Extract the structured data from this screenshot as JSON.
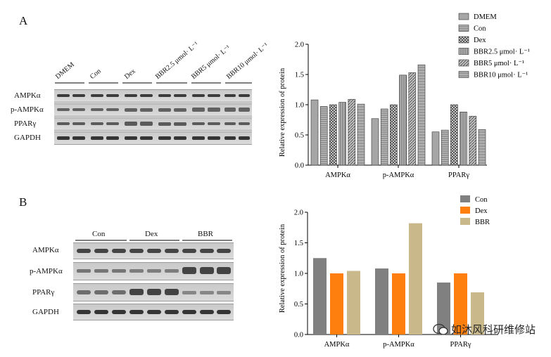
{
  "panelA": {
    "letter": "A",
    "blot_labels": [
      "AMPKα",
      "p-AMPKα",
      "PPARγ",
      "GAPDH"
    ],
    "blot_groups": [
      "DMEM",
      "Con",
      "Dex",
      "BBR2.5 μmol· L⁻¹",
      "BBR5 μmol· L⁻¹",
      "BBR10 μmol· L⁻¹"
    ]
  },
  "panelB": {
    "letter": "B",
    "blot_labels": [
      "AMPKα",
      "p-AMPKα",
      "PPARγ",
      "GAPDH"
    ],
    "blot_groups": [
      "Con",
      "Dex",
      "BBR"
    ]
  },
  "watermark": {
    "text": "如沐风科研维修站"
  },
  "chart_data": [
    {
      "type": "bar",
      "ylabel": "Relative expression of protein",
      "ylim": [
        0,
        2.0
      ],
      "yticks": [
        "0.0",
        "0.5",
        "1.0",
        "1.5",
        "2.0"
      ],
      "categories": [
        "AMPKα",
        "p-AMPKα",
        "PPARγ"
      ],
      "legend_position": "top-right",
      "series": [
        {
          "name": "DMEM",
          "values": [
            1.08,
            0.77,
            0.55
          ],
          "color": "#a6a6a6",
          "pattern": "solid"
        },
        {
          "name": "Con",
          "values": [
            0.97,
            0.93,
            0.58
          ],
          "color": "#a6a6a6",
          "pattern": "hlines"
        },
        {
          "name": "Dex",
          "values": [
            1.0,
            1.0,
            1.0
          ],
          "color": "#a6a6a6",
          "pattern": "checker"
        },
        {
          "name": "BBR2.5 μmol· L⁻¹",
          "values": [
            1.04,
            1.49,
            0.88
          ],
          "color": "#a6a6a6",
          "pattern": "vlines"
        },
        {
          "name": "BBR5 μmol· L⁻¹",
          "values": [
            1.09,
            1.53,
            0.81
          ],
          "color": "#a6a6a6",
          "pattern": "diag"
        },
        {
          "name": "BBR10 μmol· L⁻¹",
          "values": [
            1.01,
            1.66,
            0.59
          ],
          "color": "#a6a6a6",
          "pattern": "hlines2"
        }
      ]
    },
    {
      "type": "bar",
      "ylabel": "Relative expression of protein",
      "ylim": [
        0,
        2.0
      ],
      "yticks": [
        "0.0",
        "0.5",
        "1.0",
        "1.5",
        "2.0"
      ],
      "categories": [
        "AMPKα",
        "p-AMPKα",
        "PPARγ"
      ],
      "legend_position": "top-right",
      "series": [
        {
          "name": "Con",
          "values": [
            1.25,
            1.08,
            0.85
          ],
          "color": "#808080",
          "pattern": "solid"
        },
        {
          "name": "Dex",
          "values": [
            1.0,
            1.0,
            1.0
          ],
          "color": "#ff7f0e",
          "pattern": "solid"
        },
        {
          "name": "BBR",
          "values": [
            1.04,
            1.82,
            0.69
          ],
          "color": "#c9b98a",
          "pattern": "solid"
        }
      ]
    }
  ]
}
